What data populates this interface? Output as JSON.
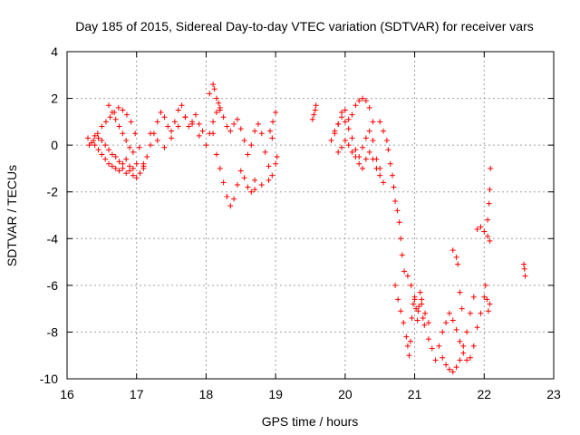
{
  "chart_data": {
    "type": "scatter",
    "title": "Day 185 of 2015, Sidereal Day-to-day VTEC variation (SDTVAR) for receiver vars",
    "xlabel": "GPS time / hours",
    "ylabel": "SDTVAR / TECUs",
    "xlim": [
      16,
      23
    ],
    "ylim": [
      -10,
      4
    ],
    "x_ticks": [
      16,
      17,
      18,
      19,
      20,
      21,
      22,
      23
    ],
    "y_ticks": [
      -10,
      -8,
      -6,
      -4,
      -2,
      0,
      2,
      4
    ],
    "x_tick_labels": [
      "16",
      "17",
      "18",
      "19",
      "20",
      "21",
      "22",
      "23"
    ],
    "y_tick_labels": [
      "-10",
      "-8",
      "-6",
      "-4",
      "-2",
      "0",
      "2",
      "4"
    ],
    "grid": true,
    "marker": "+",
    "color": "#ff0000",
    "series": [
      {
        "name": "vars",
        "x": [
          16.3,
          16.35,
          16.4,
          16.45,
          16.5,
          16.55,
          16.6,
          16.65,
          16.7,
          16.75,
          16.8,
          16.85,
          16.9,
          16.95,
          17.0,
          17.05,
          17.1,
          16.32,
          16.38,
          16.44,
          16.5,
          16.56,
          16.62,
          16.68,
          16.74,
          16.8,
          16.86,
          16.92,
          16.98,
          17.04,
          17.1,
          16.4,
          16.45,
          16.5,
          16.55,
          16.6,
          16.65,
          16.7,
          16.75,
          16.8,
          16.85,
          16.9,
          16.95,
          17.0,
          16.6,
          16.65,
          16.7,
          16.75,
          16.8,
          16.85,
          16.9,
          16.95,
          17.1,
          17.15,
          17.2,
          17.25,
          17.3,
          17.35,
          17.4,
          17.45,
          17.5,
          17.55,
          17.6,
          17.65,
          17.7,
          17.75,
          17.8,
          17.85,
          17.9,
          17.95,
          17.2,
          17.3,
          17.4,
          17.5,
          17.6,
          17.7,
          17.8,
          17.9,
          18.0,
          18.05,
          18.1,
          18.15,
          18.2,
          18.05,
          18.1,
          18.12,
          18.15,
          18.18,
          18.2,
          18.25,
          18.3,
          18.35,
          18.4,
          18.45,
          18.5,
          18.55,
          18.6,
          18.65,
          18.7,
          18.75,
          18.8,
          18.85,
          18.9,
          18.95,
          19.0,
          18.1,
          18.15,
          18.2,
          18.25,
          18.3,
          18.35,
          18.4,
          18.45,
          18.5,
          18.55,
          18.6,
          18.65,
          18.7,
          18.7,
          18.8,
          18.9,
          18.95,
          19.0,
          19.02,
          18.92,
          18.96,
          19.53,
          19.55,
          19.57,
          19.58,
          19.8,
          19.85,
          19.9,
          19.95,
          20.0,
          20.05,
          20.1,
          20.15,
          20.2,
          20.25,
          20.3,
          20.35,
          20.4,
          19.85,
          19.9,
          19.95,
          20.0,
          20.05,
          20.1,
          20.15,
          20.2,
          20.25,
          20.3,
          20.35,
          20.4,
          20.45,
          20.5,
          19.9,
          19.95,
          20.0,
          20.05,
          20.1,
          20.15,
          20.2,
          20.25,
          20.3,
          20.35,
          20.4,
          20.45,
          20.5,
          20.55,
          20.5,
          20.55,
          20.6,
          20.62,
          20.65,
          20.68,
          20.7,
          20.72,
          20.75,
          20.78,
          20.8,
          20.82,
          20.85,
          20.72,
          20.76,
          20.8,
          20.84,
          20.88,
          20.9,
          20.92,
          20.94,
          20.96,
          20.98,
          21.0,
          21.02,
          21.04,
          21.06,
          21.08,
          21.1,
          21.12,
          21.14,
          20.9,
          20.95,
          21.0,
          21.05,
          21.1,
          21.15,
          21.2,
          21.2,
          21.25,
          21.3,
          21.35,
          21.4,
          21.45,
          21.5,
          21.55,
          21.6,
          21.65,
          21.7,
          21.75,
          21.4,
          21.45,
          21.5,
          21.55,
          21.6,
          21.65,
          21.7,
          21.75,
          21.8,
          21.85,
          21.55,
          21.6,
          21.62,
          21.65,
          21.68,
          21.8,
          21.85,
          21.9,
          21.95,
          22.0,
          22.02,
          22.04,
          22.06,
          22.08,
          21.9,
          21.95,
          22.0,
          22.05,
          22.08,
          22.05,
          22.07,
          22.08,
          22.09,
          22.57,
          22.58,
          22.59
        ],
        "y": [
          0.3,
          0.1,
          0.0,
          -0.2,
          -0.4,
          -0.6,
          -0.8,
          -0.9,
          -1.0,
          -1.1,
          -1.0,
          -1.2,
          -1.1,
          -1.3,
          -1.4,
          -1.2,
          -0.9,
          0.0,
          0.2,
          0.5,
          0.8,
          1.0,
          1.2,
          1.4,
          1.6,
          1.5,
          1.3,
          1.0,
          0.5,
          -0.1,
          -0.8,
          0.4,
          0.3,
          0.2,
          0.0,
          -0.2,
          -0.4,
          -0.5,
          -0.7,
          -0.8,
          -0.6,
          -0.9,
          -1.0,
          -0.8,
          1.7,
          1.4,
          1.1,
          0.8,
          0.5,
          0.2,
          -0.1,
          -0.3,
          -1.0,
          -0.5,
          0.0,
          0.5,
          1.0,
          1.4,
          1.2,
          0.8,
          0.6,
          1.0,
          1.5,
          1.7,
          1.2,
          0.8,
          1.0,
          1.3,
          0.9,
          0.6,
          0.5,
          0.2,
          -0.1,
          0.3,
          0.8,
          1.2,
          0.9,
          0.4,
          0.0,
          0.5,
          1.0,
          1.4,
          1.6,
          2.2,
          2.6,
          2.4,
          2.0,
          1.8,
          1.5,
          1.2,
          0.8,
          0.6,
          0.9,
          1.1,
          0.7,
          0.2,
          -0.4,
          0.0,
          0.6,
          0.9,
          0.5,
          -0.3,
          -0.9,
          0.3,
          1.4,
          0.5,
          -0.4,
          -1.0,
          -1.6,
          -2.2,
          -2.6,
          -2.3,
          -1.7,
          -1.1,
          -1.4,
          -1.8,
          -2.0,
          -1.5,
          -1.9,
          -1.7,
          -1.5,
          -1.3,
          -0.8,
          -0.5,
          0.6,
          1.0,
          1.1,
          1.3,
          1.5,
          1.7,
          0.2,
          0.5,
          0.9,
          1.2,
          1.5,
          1.1,
          1.3,
          1.7,
          1.9,
          2.0,
          1.9,
          1.6,
          1.0,
          0.6,
          0.9,
          1.4,
          1.0,
          0.7,
          0.3,
          -0.2,
          -0.5,
          -0.1,
          0.3,
          0.6,
          0.2,
          -0.6,
          -1.0,
          -0.3,
          -0.1,
          0.2,
          0.0,
          -0.3,
          -0.5,
          -0.8,
          -1.0,
          -0.6,
          -0.3,
          -0.6,
          -1.0,
          -1.3,
          -1.6,
          1.0,
          0.6,
          0.2,
          -0.2,
          -0.8,
          -1.3,
          -1.8,
          -2.4,
          -2.8,
          -3.3,
          -4.0,
          -4.7,
          -5.4,
          -6.0,
          -6.6,
          -7.1,
          -7.6,
          -8.2,
          -8.6,
          -9.0,
          -8.4,
          -7.4,
          -6.8,
          -6.5,
          -7.0,
          -7.5,
          -6.9,
          -6.3,
          -6.8,
          -7.4,
          -7.7,
          -5.6,
          -6.0,
          -6.6,
          -7.1,
          -6.6,
          -7.2,
          -7.6,
          -8.3,
          -8.7,
          -9.2,
          -8.6,
          -8.0,
          -7.6,
          -7.2,
          -7.5,
          -7.9,
          -8.4,
          -8.9,
          -9.2,
          -9.1,
          -9.4,
          -9.6,
          -9.7,
          -9.5,
          -9.2,
          -8.6,
          -8.0,
          -7.2,
          -6.5,
          -4.5,
          -4.8,
          -5.1,
          -6.3,
          -7.0,
          -9.1,
          -8.6,
          -7.8,
          -7.2,
          -6.5,
          -6.0,
          -6.6,
          -7.1,
          -6.8,
          -3.6,
          -3.5,
          -3.7,
          -3.9,
          -4.1,
          -3.2,
          -2.5,
          -1.9,
          -1.0,
          -5.1,
          -5.3,
          -5.6
        ]
      }
    ]
  }
}
